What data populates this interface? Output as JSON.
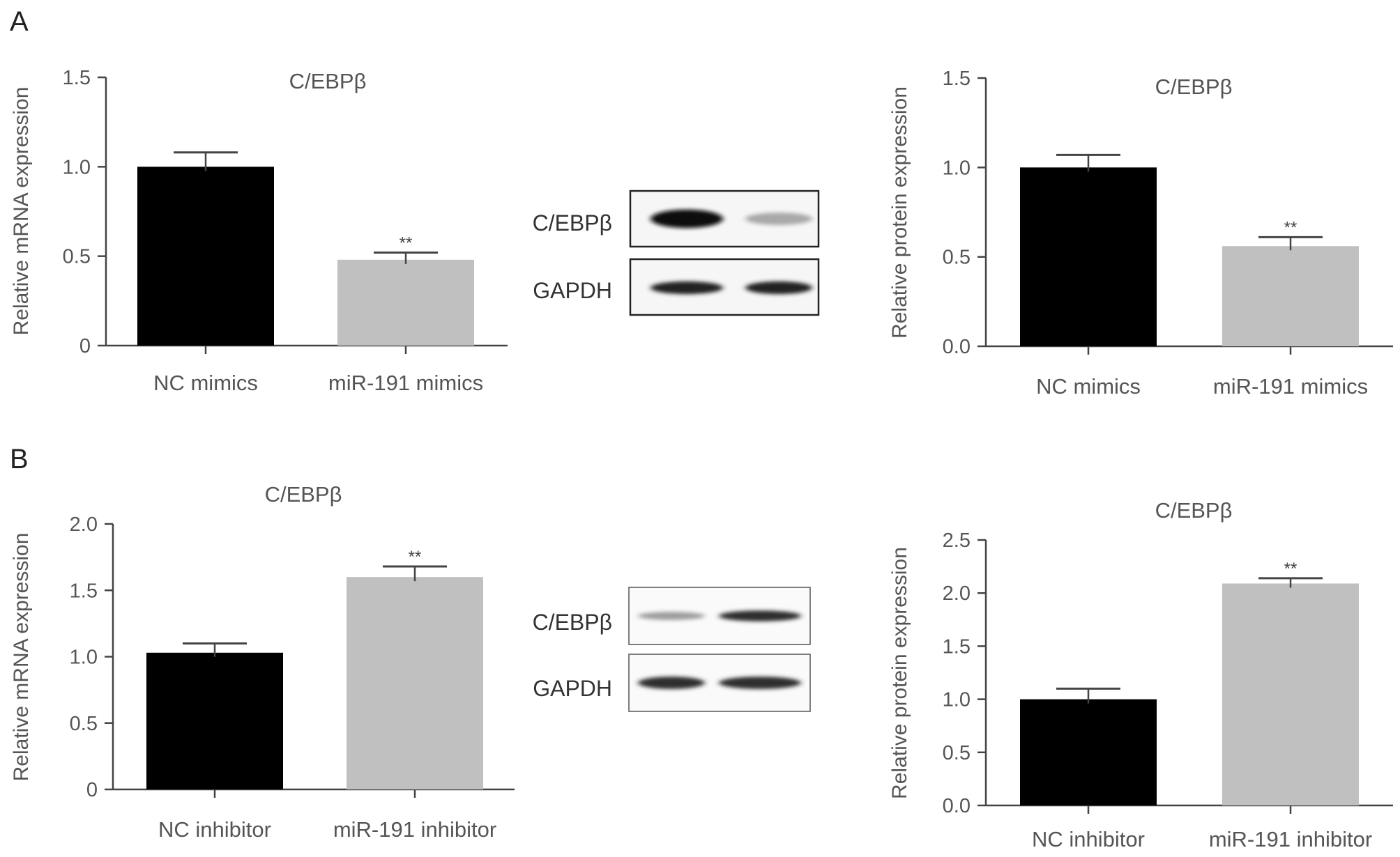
{
  "panels": [
    {
      "letter": "A"
    },
    {
      "letter": "B"
    }
  ],
  "chart_data": [
    {
      "type": "bar",
      "panel": "A",
      "title": "C/EBPβ",
      "ylabel": "Relative mRNA expression",
      "categories": [
        "NC mimics",
        "miR-191 mimics"
      ],
      "values": [
        1.0,
        0.48
      ],
      "errors": [
        0.08,
        0.04
      ],
      "significance": [
        "",
        "**"
      ],
      "bar_colors": [
        "#000000",
        "#c0c0c0"
      ],
      "ylim": [
        0,
        1.5
      ],
      "yticks": [
        0,
        0.5,
        1.0,
        1.5
      ],
      "ytick_labels": [
        "0",
        "0.5",
        "1.0",
        "1.5"
      ]
    },
    {
      "type": "bar",
      "panel": "A",
      "title": "C/EBPβ",
      "ylabel": "Relative protein expression",
      "categories": [
        "NC mimics",
        "miR-191 mimics"
      ],
      "values": [
        1.0,
        0.56
      ],
      "errors": [
        0.07,
        0.05
      ],
      "significance": [
        "",
        "**"
      ],
      "bar_colors": [
        "#000000",
        "#c0c0c0"
      ],
      "ylim": [
        0,
        1.5
      ],
      "yticks": [
        0,
        0.5,
        1.0,
        1.5
      ],
      "ytick_labels": [
        "0.0",
        "0.5",
        "1.0",
        "1.5"
      ]
    },
    {
      "type": "bar",
      "panel": "B",
      "title": "C/EBPβ",
      "ylabel": "Relative mRNA expression",
      "categories": [
        "NC inhibitor",
        "miR-191 inhibitor"
      ],
      "values": [
        1.03,
        1.6
      ],
      "errors": [
        0.07,
        0.08
      ],
      "significance": [
        "",
        "**"
      ],
      "bar_colors": [
        "#000000",
        "#c0c0c0"
      ],
      "ylim": [
        0,
        2.0
      ],
      "yticks": [
        0,
        0.5,
        1.0,
        1.5,
        2.0
      ],
      "ytick_labels": [
        "0",
        "0.5",
        "1.0",
        "1.5",
        "2.0"
      ]
    },
    {
      "type": "bar",
      "panel": "B",
      "title": "C/EBPβ",
      "ylabel": "Relative protein expression",
      "categories": [
        "NC inhibitor",
        "miR-191 inhibitor"
      ],
      "values": [
        1.0,
        2.09
      ],
      "errors": [
        0.1,
        0.05
      ],
      "significance": [
        "",
        "**"
      ],
      "bar_colors": [
        "#000000",
        "#c0c0c0"
      ],
      "ylim": [
        0,
        2.5
      ],
      "yticks": [
        0,
        0.5,
        1.0,
        1.5,
        2.0,
        2.5
      ],
      "ytick_labels": [
        "0.0",
        "0.5",
        "1.0",
        "1.5",
        "2.0",
        "2.5"
      ]
    }
  ],
  "blots": [
    {
      "panel": "A",
      "rows": [
        {
          "label": "C/EBPβ",
          "band_intensity": [
            1.0,
            0.35
          ]
        },
        {
          "label": "GAPDH",
          "band_intensity": [
            0.9,
            0.9
          ]
        }
      ]
    },
    {
      "panel": "B",
      "rows": [
        {
          "label": "C/EBPβ",
          "band_intensity": [
            0.4,
            0.85
          ]
        },
        {
          "label": "GAPDH",
          "band_intensity": [
            0.85,
            0.85
          ]
        }
      ]
    }
  ]
}
